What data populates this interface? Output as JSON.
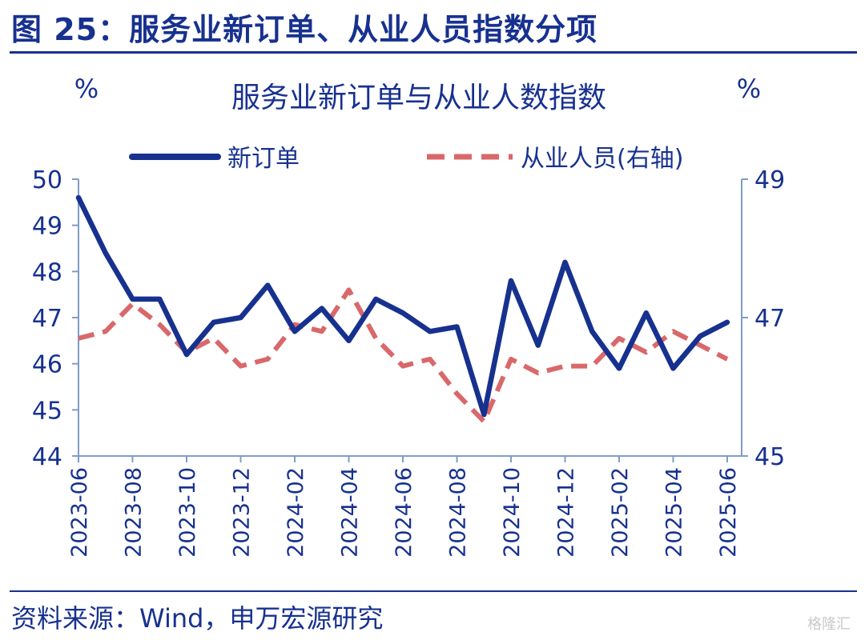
{
  "figure_title": "图 25：服务业新订单、从业人员指数分项",
  "source_note": "资料来源：Wind，申万宏源研究",
  "watermark": "格隆汇",
  "colors": {
    "primary": "#17318f",
    "secondary": "#d9686a",
    "axis": "#7f9cc8"
  },
  "chart_data": {
    "type": "line",
    "title": "服务业新订单与从业人数指数",
    "y_left_unit": "%",
    "y_right_unit": "%",
    "x": [
      "2023-06",
      "2023-07",
      "2023-08",
      "2023-09",
      "2023-10",
      "2023-11",
      "2023-12",
      "2024-01",
      "2024-02",
      "2024-03",
      "2024-04",
      "2024-05",
      "2024-06",
      "2024-07",
      "2024-08",
      "2024-09",
      "2024-10",
      "2024-11",
      "2024-12",
      "2025-01",
      "2025-02",
      "2025-03",
      "2025-04",
      "2025-05",
      "2025-06"
    ],
    "x_tick_labels": [
      "2023-06",
      "2023-08",
      "2023-10",
      "2023-12",
      "2024-02",
      "2024-04",
      "2024-06",
      "2024-08",
      "2024-10",
      "2024-12",
      "2025-02",
      "2025-04",
      "2025-06"
    ],
    "y_left": {
      "min": 44,
      "max": 50,
      "ticks": [
        "50",
        "49",
        "48",
        "47",
        "46",
        "45",
        "44"
      ]
    },
    "y_right": {
      "min": 45,
      "max": 49,
      "ticks": [
        "49",
        "47",
        "45"
      ]
    },
    "legend_position": "top",
    "series": [
      {
        "name": "新订单",
        "axis": "left",
        "style": "solid",
        "values": [
          49.6,
          48.4,
          47.4,
          47.4,
          46.2,
          46.9,
          47.0,
          47.7,
          46.7,
          47.2,
          46.5,
          47.4,
          47.1,
          46.7,
          46.8,
          44.9,
          47.8,
          46.4,
          48.2,
          46.7,
          45.9,
          47.1,
          45.9,
          46.6,
          46.9
        ]
      },
      {
        "name": "从业人员(右轴)",
        "axis": "right",
        "style": "dashed",
        "values": [
          46.7,
          46.8,
          47.2,
          46.9,
          46.5,
          46.7,
          46.3,
          46.4,
          46.9,
          46.8,
          47.4,
          46.7,
          46.3,
          46.4,
          45.9,
          45.5,
          46.4,
          46.2,
          46.3,
          46.3,
          46.7,
          46.5,
          46.8,
          46.6,
          46.4
        ]
      }
    ]
  }
}
